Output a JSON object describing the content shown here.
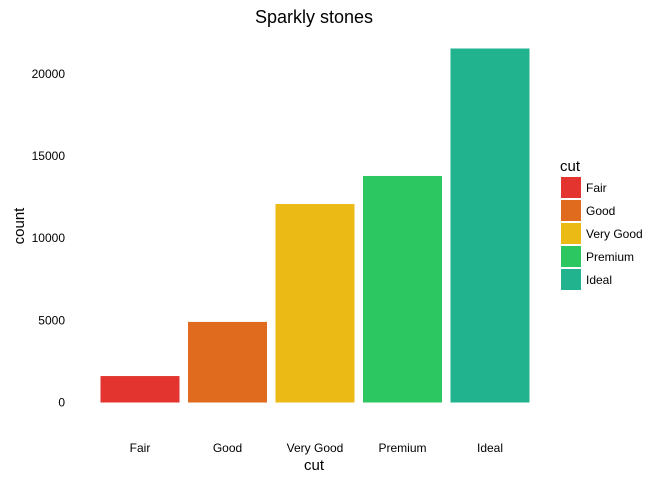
{
  "chart_data": {
    "type": "bar",
    "title": "Sparkly stones",
    "xlabel": "cut",
    "ylabel": "count",
    "categories": [
      "Fair",
      "Good",
      "Very Good",
      "Premium",
      "Ideal"
    ],
    "values": [
      1610,
      4906,
      12082,
      13791,
      21551
    ],
    "colors": [
      "#e3342f",
      "#e06b1f",
      "#ecba15",
      "#2dc762",
      "#20b38d"
    ],
    "y_ticks": [
      0,
      5000,
      10000,
      15000,
      20000
    ],
    "y_tick_labels": [
      "0",
      "5000",
      "10000",
      "15000",
      "20000"
    ],
    "ylim": [
      0,
      21551
    ],
    "grid": false,
    "legend": {
      "title": "cut",
      "placement": "right",
      "items": [
        "Fair",
        "Good",
        "Very Good",
        "Premium",
        "Ideal"
      ]
    }
  }
}
